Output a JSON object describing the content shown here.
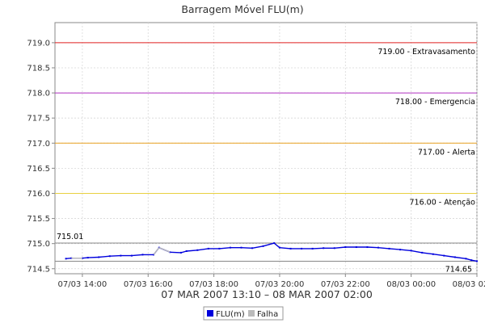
{
  "chart_data": {
    "type": "line",
    "title": "Barragem Móvel FLU(m)",
    "xlabel": "07 MAR 2007 13:10 – 08 MAR 2007 02:00",
    "ylabel": "",
    "xlim": [
      "2007-03-07 13:10",
      "2007-03-08 02:00"
    ],
    "ylim": [
      714.4,
      719.4
    ],
    "grid": true,
    "legend_position": "bottom-center",
    "y_ticks": [
      "714.5",
      "715.0",
      "715.5",
      "716.0",
      "716.5",
      "717.0",
      "717.5",
      "718.0",
      "718.5",
      "719.0"
    ],
    "x_ticks": [
      {
        "t": "2007-03-07 14:00",
        "label": "07/03 14:00"
      },
      {
        "t": "2007-03-07 16:00",
        "label": "07/03 16:00"
      },
      {
        "t": "2007-03-07 18:00",
        "label": "07/03 18:00"
      },
      {
        "t": "2007-03-07 20:00",
        "label": "07/03 20:00"
      },
      {
        "t": "2007-03-07 22:00",
        "label": "07/03 22:00"
      },
      {
        "t": "2007-03-08 00:00",
        "label": "08/03 00:00"
      },
      {
        "t": "2007-03-08 02:00",
        "label": "08/03 02:00"
      }
    ],
    "reference_lines": [
      {
        "value": 719.0,
        "label": "719.00 - Extravasamento",
        "color": "#e02020"
      },
      {
        "value": 718.0,
        "label": "718.00 - Emergencia",
        "color": "#b030c0"
      },
      {
        "value": 717.0,
        "label": "717.00 - Alerta",
        "color": "#e8a020"
      },
      {
        "value": 716.0,
        "label": "716.00 - Atenção",
        "color": "#e8d040"
      },
      {
        "value": 715.01,
        "label": "715.01",
        "color": "#888888"
      },
      {
        "value": 714.65,
        "label": "714.65",
        "color": "#888888"
      }
    ],
    "series": [
      {
        "name": "FLU(m)",
        "color": "#0000dd",
        "points": [
          [
            "2007-03-07 13:30",
            714.7
          ],
          [
            "2007-03-07 13:40",
            714.71
          ],
          [
            "2007-03-07 14:00",
            714.71
          ],
          [
            "2007-03-07 14:10",
            714.72
          ],
          [
            "2007-03-07 14:30",
            714.73
          ],
          [
            "2007-03-07 14:50",
            714.75
          ],
          [
            "2007-03-07 15:10",
            714.76
          ],
          [
            "2007-03-07 15:30",
            714.76
          ],
          [
            "2007-03-07 15:50",
            714.78
          ],
          [
            "2007-03-07 16:10",
            714.78
          ],
          [
            "2007-03-07 16:20",
            714.92
          ],
          [
            "2007-03-07 16:40",
            714.83
          ],
          [
            "2007-03-07 17:00",
            714.82
          ],
          [
            "2007-03-07 17:10",
            714.85
          ],
          [
            "2007-03-07 17:30",
            714.87
          ],
          [
            "2007-03-07 17:50",
            714.9
          ],
          [
            "2007-03-07 18:10",
            714.9
          ],
          [
            "2007-03-07 18:30",
            714.92
          ],
          [
            "2007-03-07 18:50",
            714.92
          ],
          [
            "2007-03-07 19:10",
            714.91
          ],
          [
            "2007-03-07 19:30",
            714.95
          ],
          [
            "2007-03-07 19:50",
            715.01
          ],
          [
            "2007-03-07 20:00",
            714.92
          ],
          [
            "2007-03-07 20:20",
            714.9
          ],
          [
            "2007-03-07 20:40",
            714.9
          ],
          [
            "2007-03-07 21:00",
            714.9
          ],
          [
            "2007-03-07 21:20",
            714.91
          ],
          [
            "2007-03-07 21:40",
            714.91
          ],
          [
            "2007-03-07 22:00",
            714.93
          ],
          [
            "2007-03-07 22:20",
            714.93
          ],
          [
            "2007-03-07 22:40",
            714.93
          ],
          [
            "2007-03-07 23:00",
            714.92
          ],
          [
            "2007-03-07 23:20",
            714.9
          ],
          [
            "2007-03-07 23:40",
            714.88
          ],
          [
            "2007-03-08 00:00",
            714.86
          ],
          [
            "2007-03-08 00:20",
            714.82
          ],
          [
            "2007-03-08 00:40",
            714.79
          ],
          [
            "2007-03-08 01:00",
            714.76
          ],
          [
            "2007-03-08 01:20",
            714.73
          ],
          [
            "2007-03-08 01:40",
            714.7
          ],
          [
            "2007-03-08 01:50",
            714.67
          ],
          [
            "2007-03-08 02:00",
            714.65
          ]
        ]
      },
      {
        "name": "Falha",
        "color": "#bbbbbb",
        "points": [
          [
            "2007-03-07 13:40",
            714.71
          ],
          [
            "2007-03-07 14:00",
            714.71
          ],
          [
            "2007-03-07 16:10",
            714.78
          ],
          [
            "2007-03-07 16:20",
            714.92
          ],
          [
            "2007-03-07 16:40",
            714.83
          ]
        ],
        "segments": [
          [
            0,
            1
          ],
          [
            2,
            3
          ],
          [
            3,
            4
          ]
        ]
      }
    ]
  }
}
